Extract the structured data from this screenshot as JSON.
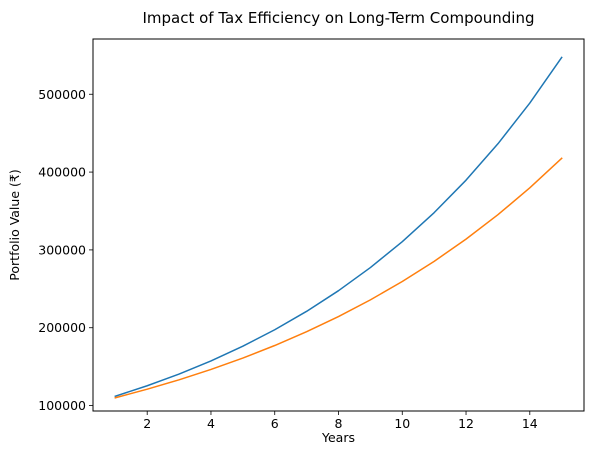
{
  "chart_data": {
    "type": "line",
    "title": "Impact of Tax Efficiency on Long-Term Compounding",
    "xlabel": "Years",
    "ylabel": "Portfolio Value (₹)",
    "x": [
      1,
      2,
      3,
      4,
      5,
      6,
      7,
      8,
      9,
      10,
      11,
      12,
      13,
      14,
      15
    ],
    "xlim": [
      0.3,
      15.7
    ],
    "ylim": [
      93000,
      571000
    ],
    "xticks": [
      2,
      4,
      6,
      8,
      10,
      12,
      14
    ],
    "yticks": [
      100000,
      200000,
      300000,
      400000,
      500000
    ],
    "grid": false,
    "series": [
      {
        "color": "#1f77b4",
        "values": [
          112000,
          125440,
          140493,
          157352,
          176234,
          197382,
          221068,
          247596,
          277308,
          310585,
          347855,
          389598,
          436349,
          488711,
          547357
        ]
      },
      {
        "color": "#ff7f0e",
        "values": [
          110000,
          121000,
          133100,
          146410,
          161051,
          177156,
          194872,
          214359,
          235795,
          259374,
          285312,
          313843,
          345227,
          379750,
          417725
        ]
      }
    ]
  }
}
